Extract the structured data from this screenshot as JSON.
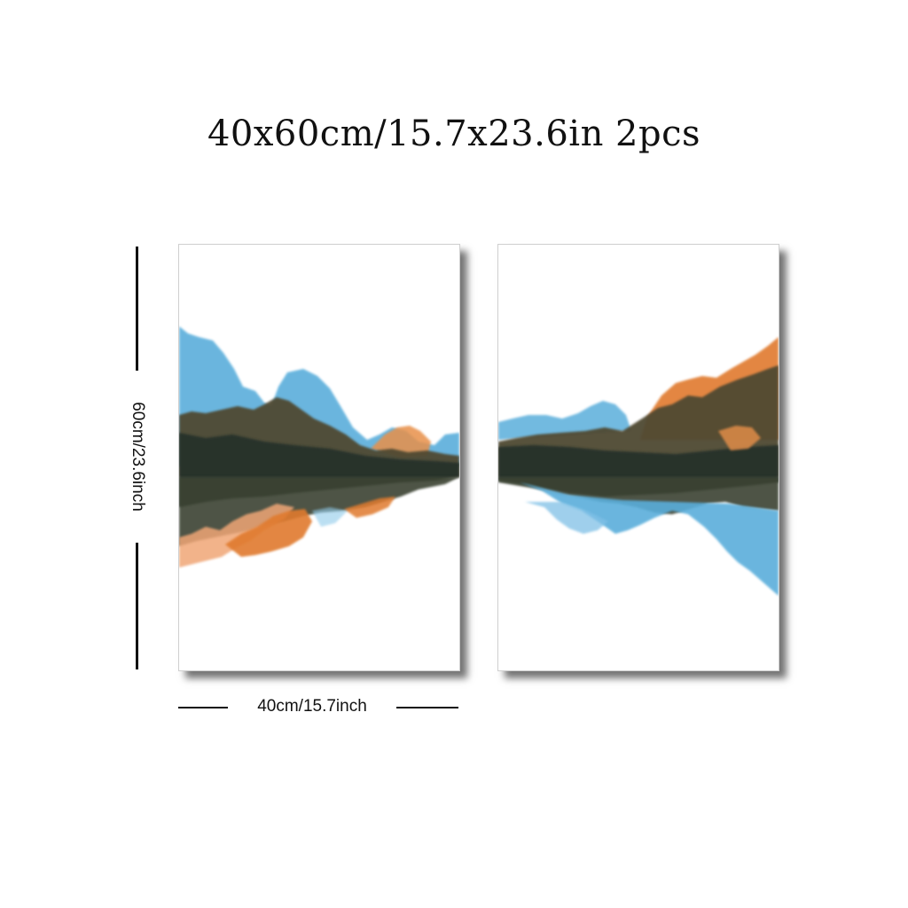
{
  "heading": "40x60cm/15.7x23.6in 2pcs",
  "dimensions": {
    "height_label": "60cm/23.6inch",
    "width_label": "40cm/15.7inch"
  },
  "artwork": {
    "panel_count": 2,
    "colors": {
      "blue": "#5aaedb",
      "dark": "#2f3a2a",
      "olive": "#5b5237",
      "orange": "#e07a2e",
      "peach": "#f0a676"
    }
  }
}
